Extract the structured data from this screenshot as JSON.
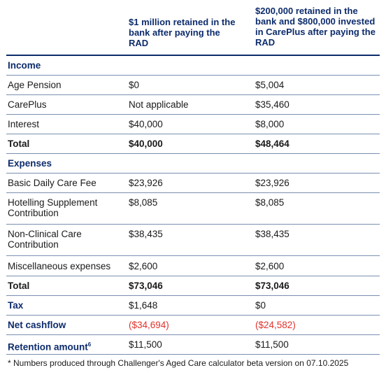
{
  "columns": {
    "col2": "$1 million retained in the bank after paying the RAD",
    "col3": "$200,000 retained in the bank and $800,000 invested in CarePlus after paying the RAD"
  },
  "income": {
    "heading": "Income",
    "rows": [
      {
        "label": "Age Pension",
        "v1": "$0",
        "v2": "$5,004"
      },
      {
        "label": "CarePlus",
        "v1": "Not applicable",
        "v2": "$35,460"
      },
      {
        "label": "Interest",
        "v1": "$40,000",
        "v2": "$8,000"
      }
    ],
    "total": {
      "label": "Total",
      "v1": "$40,000",
      "v2": "$48,464"
    }
  },
  "expenses": {
    "heading": "Expenses",
    "rows": [
      {
        "label": "Basic Daily Care Fee",
        "v1": "$23,926",
        "v2": "$23,926"
      },
      {
        "label": "Hotelling Supplement Contribution",
        "v1": "$8,085",
        "v2": "$8,085"
      },
      {
        "label": "Non-Clinical Care Contribution",
        "v1": "$38,435",
        "v2": "$38,435"
      },
      {
        "label": "Miscellaneous expenses",
        "v1": "$2,600",
        "v2": "$2,600"
      }
    ],
    "total": {
      "label": "Total",
      "v1": "$73,046",
      "v2": "$73,046"
    }
  },
  "tax": {
    "label": "Tax",
    "v1": "$1,648",
    "v2": "$0"
  },
  "net": {
    "label": "Net cashflow",
    "v1": "($34,694)",
    "v2": "($24,582)"
  },
  "retention": {
    "label": "Retention amount",
    "sup": "6",
    "v1": "$11,500",
    "v2": "$11,500"
  },
  "footnote": "* Numbers produced through Challenger's Aged Care calculator beta version on 07.10.2025",
  "colors": {
    "heading_blue": "#0d2c6c",
    "negative_red": "#e0322b",
    "rule": "#7a8fb0"
  }
}
